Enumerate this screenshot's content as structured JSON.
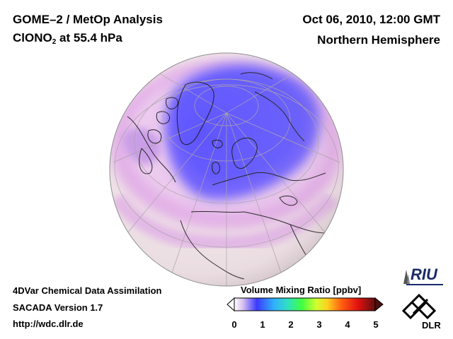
{
  "header": {
    "instrument": "GOME–2 / MetOp Analysis",
    "species_prefix": "ClONO",
    "species_sub": "2",
    "species_suffix": " at 55.4 hPa",
    "datetime": "Oct 06, 2010, 12:00 GMT",
    "region": "Northern Hemisphere"
  },
  "footer": {
    "line1": "4DVar Chemical Data Assimilation",
    "line2": "SACADA Version 1.7",
    "line3": "http://wdc.dlr.de"
  },
  "colorbar": {
    "title": "Volume Mixing Ratio [ppbv]",
    "min": 0,
    "max": 5,
    "ticks": [
      "0",
      "1",
      "2",
      "3",
      "4",
      "5"
    ]
  },
  "logos": {
    "riu": "RIU",
    "dlr": "DLR"
  },
  "colors": {
    "low_ozone_blue": "#6a5cff",
    "ocean_background": "#f3e6ea",
    "band_pink": "#e9b3ea"
  }
}
